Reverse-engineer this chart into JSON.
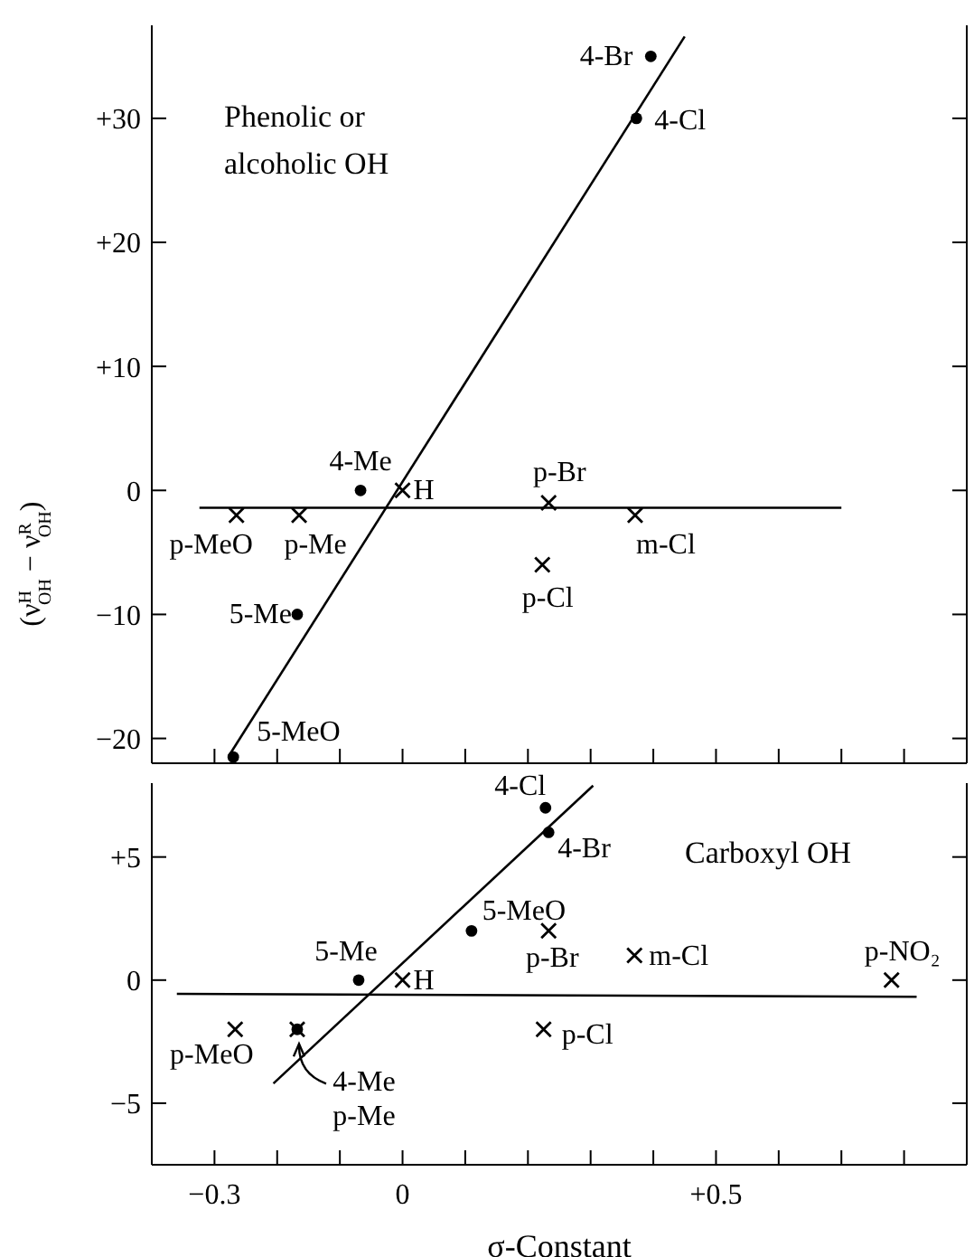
{
  "chart_data": [
    {
      "type": "scatter",
      "ylabel": "(ν$^{H}$$_{OH}$ − ν$^{R}$$_{OH}$)",
      "tick_labels": "y",
      "grid": false,
      "legend": false,
      "xlim": [
        -0.4,
        0.9
      ],
      "xticks": [
        {
          "value": -0.3,
          "label": null
        },
        {
          "value": -0.2,
          "label": null
        },
        {
          "value": -0.1,
          "label": null
        },
        {
          "value": 0,
          "label": null
        },
        {
          "value": 0.1,
          "label": null
        },
        {
          "value": 0.2,
          "label": null
        },
        {
          "value": 0.3,
          "label": null
        },
        {
          "value": 0.4,
          "label": null
        },
        {
          "value": 0.5,
          "label": null
        },
        {
          "value": 0.6,
          "label": null
        },
        {
          "value": 0.7,
          "label": null
        },
        {
          "value": 0.8,
          "label": null
        }
      ],
      "ylim": [
        -22,
        37.5
      ],
      "yticks": [
        {
          "value": -20,
          "label": "−20"
        },
        {
          "value": -10,
          "label": "−10"
        },
        0,
        {
          "value": 10,
          "label": "+10"
        },
        {
          "value": 20,
          "label": "+20"
        },
        {
          "value": 30,
          "label": "+30"
        }
      ],
      "series": [
        {
          "marker": "circle",
          "color": "#000000",
          "x": [
            0.396,
            0.373,
            -0.067,
            -0.168,
            -0.27
          ],
          "values": [
            35,
            30,
            0,
            -10,
            -21.5
          ]
        },
        {
          "marker": "cross",
          "color": "#000000",
          "x": [
            0,
            -0.265,
            -0.165,
            0.233,
            0.371,
            0.223
          ],
          "values": [
            0,
            -2,
            -2,
            -1,
            -2,
            -6
          ]
        },
        {
          "type": "line",
          "marker": "none",
          "color": "#000000",
          "x": [
            -0.277,
            0.45
          ],
          "values": [
            -21.4,
            36.6
          ]
        },
        {
          "type": "line",
          "marker": "none",
          "color": "#000000",
          "x": [
            -0.324,
            0.7
          ],
          "values": [
            -1.4,
            -1.4
          ]
        }
      ],
      "annotations": [
        "Phenolic or\nalcoholic OH",
        {
          "text": "4-Br",
          "x": 0.396,
          "y": 35
        },
        {
          "text": "4-Cl",
          "x": 0.373,
          "y": 30
        },
        {
          "text": "4-Me",
          "x": -0.067,
          "y": 0
        },
        {
          "text": "H",
          "x": 0,
          "y": 0
        },
        {
          "text": "5-Me",
          "x": -0.168,
          "y": -10
        },
        {
          "text": "5-MeO",
          "x": -0.27,
          "y": -21.5
        },
        {
          "text": "p-MeO",
          "x": -0.265,
          "y": -2
        },
        {
          "text": "p-Me",
          "x": -0.165,
          "y": -2
        },
        {
          "text": "p-Br",
          "x": 0.233,
          "y": -1
        },
        {
          "text": "m-Cl",
          "x": 0.371,
          "y": -2
        },
        {
          "text": "p-Cl",
          "x": 0.223,
          "y": -6
        }
      ]
    },
    {
      "type": "scatter",
      "xlabel": "σ-Constant",
      "grid": false,
      "legend": false,
      "xlim": [
        -0.4,
        0.9
      ],
      "xticks": [
        {
          "value": -0.3,
          "label": "−0.3"
        },
        {
          "value": -0.2,
          "label": null
        },
        {
          "value": -0.1,
          "label": null
        },
        0,
        {
          "value": 0.1,
          "label": null
        },
        {
          "value": 0.2,
          "label": null
        },
        {
          "value": 0.3,
          "label": null
        },
        {
          "value": 0.4,
          "label": null
        },
        {
          "value": 0.5,
          "label": "+0.5"
        },
        {
          "value": 0.6,
          "label": null
        },
        {
          "value": 0.7,
          "label": null
        },
        {
          "value": 0.8,
          "label": null
        }
      ],
      "ylim": [
        -7.5,
        8
      ],
      "yticks": [
        {
          "value": -5,
          "label": "−5"
        },
        0,
        {
          "value": 5,
          "label": "+5"
        }
      ],
      "series": [
        {
          "marker": "circle",
          "color": "#000000",
          "x": [
            0.228,
            0.233,
            0.11,
            -0.07,
            -0.168
          ],
          "values": [
            7,
            6,
            2,
            0,
            -2
          ]
        },
        {
          "marker": "cross",
          "color": "#000000",
          "x": [
            0,
            0.233,
            0.37,
            0.78,
            0.225,
            -0.267,
            -0.168
          ],
          "values": [
            0,
            2,
            1,
            0,
            -2,
            -2,
            -2
          ]
        },
        {
          "type": "line",
          "marker": "none",
          "color": "#000000",
          "x": [
            -0.206,
            0.304
          ],
          "values": [
            -4.2,
            7.9
          ]
        },
        {
          "type": "line",
          "marker": "none",
          "color": "#000000",
          "x": [
            -0.36,
            0.82
          ],
          "values": [
            -0.56,
            -0.68
          ]
        }
      ],
      "annotations": [
        "Carboxyl OH",
        {
          "text": "4-Cl",
          "x": 0.228,
          "y": 7
        },
        {
          "text": "4-Br",
          "x": 0.233,
          "y": 6
        },
        {
          "text": "5-MeO",
          "x": 0.11,
          "y": 2
        },
        {
          "text": "p-Br",
          "x": 0.233,
          "y": 2
        },
        {
          "text": "5-Me",
          "x": -0.07,
          "y": 0
        },
        {
          "text": "H",
          "x": 0,
          "y": 0
        },
        {
          "text": "m-Cl",
          "x": 0.37,
          "y": 1
        },
        {
          "text": "p-NO₂",
          "x": 0.78,
          "y": 0
        },
        {
          "text": "p-Cl",
          "x": 0.225,
          "y": -2
        },
        {
          "text": "p-MeO",
          "x": -0.267,
          "y": -2
        },
        {
          "text": "4-Me\np-Me",
          "x": -0.168,
          "y": -2
        }
      ]
    }
  ]
}
